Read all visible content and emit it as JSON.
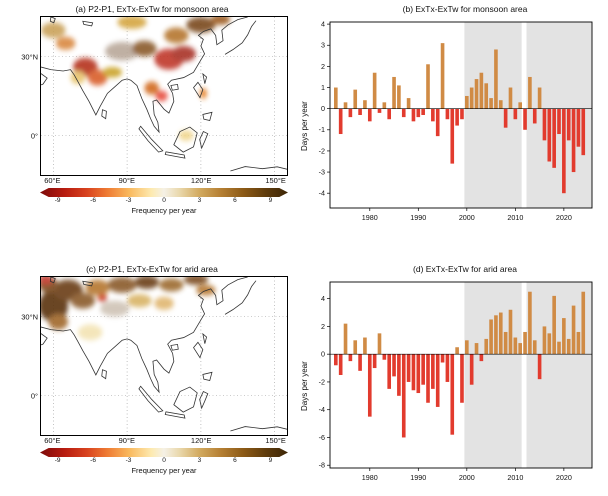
{
  "map_axes": {
    "y_ticks": [
      "30°N",
      "0°"
    ],
    "x_ticks": [
      "60°E",
      "90°E",
      "120°E",
      "150°E"
    ]
  },
  "chart_data": [
    {
      "id": "a",
      "type": "heatmap",
      "title": "(a) P2-P1, ExTx-ExTw for monsoon area",
      "extent": {
        "lon": [
          55,
          155
        ],
        "lat": [
          -15,
          45
        ]
      },
      "colorbar": {
        "label": "Frequency per year",
        "tick_labels": [
          "-9",
          "-6",
          "-3",
          "0",
          "3",
          "6",
          "9"
        ],
        "range": [
          -10.5,
          10.5
        ],
        "palette": "dark-red / red / orange / yellow / white / tan / brown / dark-brown"
      },
      "hotspots": [
        {
          "lon": 73,
          "lat": 26,
          "rx": 5,
          "ry": 3.5,
          "color": "#b5301f"
        },
        {
          "lon": 78,
          "lat": 22,
          "rx": 4,
          "ry": 3,
          "color": "#d95f2b"
        },
        {
          "lon": 70,
          "lat": 22,
          "rx": 3,
          "ry": 2.5,
          "color": "#e8c56f"
        },
        {
          "lon": 84,
          "lat": 24,
          "rx": 4,
          "ry": 2,
          "color": "#c9a227"
        },
        {
          "lon": 88,
          "lat": 32,
          "rx": 7,
          "ry": 3.5,
          "color": "#b9a89a"
        },
        {
          "lon": 97,
          "lat": 33,
          "rx": 5,
          "ry": 3,
          "color": "#8a5a2b"
        },
        {
          "lon": 107,
          "lat": 29,
          "rx": 6,
          "ry": 4,
          "color": "#c0392b"
        },
        {
          "lon": 113,
          "lat": 31,
          "rx": 5,
          "ry": 3,
          "color": "#a93226"
        },
        {
          "lon": 120,
          "lat": 42,
          "rx": 6,
          "ry": 3,
          "color": "#7a4a1f"
        },
        {
          "lon": 110,
          "lat": 38,
          "rx": 5,
          "ry": 3,
          "color": "#b5762f"
        },
        {
          "lon": 60,
          "lat": 40,
          "rx": 5,
          "ry": 3,
          "color": "#caa25a"
        },
        {
          "lon": 65,
          "lat": 35,
          "rx": 4,
          "ry": 2.5,
          "color": "#d98841"
        },
        {
          "lon": 100,
          "lat": 18,
          "rx": 3,
          "ry": 2.5,
          "color": "#d2691e"
        },
        {
          "lon": 104,
          "lat": 15,
          "rx": 2.5,
          "ry": 2,
          "color": "#e74c3c"
        },
        {
          "lon": 121,
          "lat": 16,
          "rx": 1.5,
          "ry": 2,
          "color": "#e67e22"
        },
        {
          "lon": 114,
          "lat": 0,
          "rx": 3,
          "ry": 2,
          "color": "#f0d58c"
        },
        {
          "lon": 92,
          "lat": 43,
          "rx": 6,
          "ry": 2.5,
          "color": "#d4a53f"
        },
        {
          "lon": 128,
          "lat": 44,
          "rx": 4,
          "ry": 2,
          "color": "#9c5a1e"
        }
      ]
    },
    {
      "id": "b",
      "type": "bar",
      "title": "(b) ExTx-ExTw for monsoon area",
      "ylabel": "Days per year",
      "ylim": [
        -4.7,
        4.1
      ],
      "yticks": [
        -4,
        -3,
        -2,
        -1,
        0,
        1,
        2,
        3,
        4
      ],
      "xlim": [
        1971.8,
        2025.8
      ],
      "xticks": [
        1980,
        1990,
        2000,
        2010,
        2020
      ],
      "shaded_spans": [
        [
          1999.5,
          2011.3
        ],
        [
          2012.3,
          2025.8
        ]
      ],
      "shade_color": "#e3e3e3",
      "positive_color": "#d08b45",
      "negative_color": "#e23b2e",
      "years": [
        1973,
        1974,
        1975,
        1976,
        1977,
        1978,
        1979,
        1980,
        1981,
        1982,
        1983,
        1984,
        1985,
        1986,
        1987,
        1988,
        1989,
        1990,
        1991,
        1992,
        1993,
        1994,
        1995,
        1996,
        1997,
        1998,
        1999,
        2000,
        2001,
        2002,
        2003,
        2004,
        2005,
        2006,
        2007,
        2008,
        2009,
        2010,
        2011,
        2012,
        2013,
        2014,
        2015,
        2016,
        2017,
        2018,
        2019,
        2020,
        2021,
        2022,
        2023,
        2024
      ],
      "values": [
        1.0,
        -1.2,
        0.3,
        -0.4,
        0.9,
        -0.3,
        0.4,
        -0.6,
        1.7,
        -0.2,
        0.3,
        -0.5,
        1.5,
        1.1,
        -0.4,
        0.5,
        -0.6,
        -0.4,
        -0.3,
        2.1,
        -0.6,
        -1.3,
        3.1,
        -0.5,
        -2.6,
        -0.8,
        -0.5,
        0.6,
        1.0,
        1.4,
        1.7,
        1.2,
        0.5,
        2.8,
        0.4,
        -0.9,
        1.0,
        -0.5,
        0.3,
        -1.0,
        1.5,
        -0.7,
        1.0,
        -1.5,
        -2.5,
        -2.8,
        -1.2,
        -4.0,
        -1.5,
        -3.0,
        -1.8,
        -2.2
      ]
    },
    {
      "id": "c",
      "type": "heatmap",
      "title": "(c) P2-P1, ExTx-ExTw for arid area",
      "extent": {
        "lon": [
          55,
          155
        ],
        "lat": [
          -15,
          45
        ]
      },
      "colorbar": {
        "label": "Frequency per year",
        "tick_labels": [
          "-9",
          "-6",
          "-3",
          "0",
          "3",
          "6",
          "9"
        ],
        "range": [
          -10.5,
          10.5
        ],
        "palette": "dark-red / red / orange / yellow / white / tan / brown / dark-brown"
      },
      "hotspots": [
        {
          "lon": 60,
          "lat": 34,
          "rx": 6,
          "ry": 6,
          "color": "#5a3310"
        },
        {
          "lon": 66,
          "lat": 40,
          "rx": 6,
          "ry": 4,
          "color": "#6b3e14"
        },
        {
          "lon": 58,
          "lat": 42,
          "rx": 4,
          "ry": 3,
          "color": "#7a4a1f"
        },
        {
          "lon": 72,
          "lat": 36,
          "rx": 5,
          "ry": 3,
          "color": "#8a5a2b"
        },
        {
          "lon": 62,
          "lat": 28,
          "rx": 4,
          "ry": 3,
          "color": "#a0682c"
        },
        {
          "lon": 57,
          "lat": 44,
          "rx": 3,
          "ry": 2,
          "color": "#c0392b"
        },
        {
          "lon": 78,
          "lat": 41,
          "rx": 5,
          "ry": 3,
          "color": "#b5762f"
        },
        {
          "lon": 88,
          "lat": 42,
          "rx": 6,
          "ry": 3,
          "color": "#8a5a2b"
        },
        {
          "lon": 98,
          "lat": 43,
          "rx": 5,
          "ry": 2.5,
          "color": "#6b3e14"
        },
        {
          "lon": 108,
          "lat": 42,
          "rx": 5,
          "ry": 2.5,
          "color": "#9c6b2f"
        },
        {
          "lon": 118,
          "lat": 44,
          "rx": 5,
          "ry": 2,
          "color": "#7a4a1f"
        },
        {
          "lon": 85,
          "lat": 33,
          "rx": 6,
          "ry": 3,
          "color": "#cfc3b5"
        },
        {
          "lon": 95,
          "lat": 36,
          "rx": 5,
          "ry": 2.5,
          "color": "#d8b365"
        },
        {
          "lon": 75,
          "lat": 24,
          "rx": 5,
          "ry": 3,
          "color": "#f3e3b3"
        },
        {
          "lon": 105,
          "lat": 35,
          "rx": 4,
          "ry": 2.5,
          "color": "#e0b66f"
        },
        {
          "lon": 80,
          "lat": 37,
          "rx": 2,
          "ry": 1.5,
          "color": "#cc4125"
        },
        {
          "lon": 122,
          "lat": 40,
          "rx": 4,
          "ry": 2,
          "color": "#b5762f"
        }
      ]
    },
    {
      "id": "d",
      "type": "bar",
      "title": "(d) ExTx-ExTw for arid area",
      "ylabel": "Days per year",
      "ylim": [
        -8.2,
        5.2
      ],
      "yticks": [
        -8,
        -6,
        -4,
        -2,
        0,
        2,
        4
      ],
      "xlim": [
        1971.8,
        2025.8
      ],
      "xticks": [
        1980,
        1990,
        2000,
        2010,
        2020
      ],
      "shaded_spans": [
        [
          1999.5,
          2011.3
        ],
        [
          2012.3,
          2025.8
        ]
      ],
      "shade_color": "#e3e3e3",
      "positive_color": "#d08b45",
      "negative_color": "#e23b2e",
      "years": [
        1973,
        1974,
        1975,
        1976,
        1977,
        1978,
        1979,
        1980,
        1981,
        1982,
        1983,
        1984,
        1985,
        1986,
        1987,
        1988,
        1989,
        1990,
        1991,
        1992,
        1993,
        1994,
        1995,
        1996,
        1997,
        1998,
        1999,
        2000,
        2001,
        2002,
        2003,
        2004,
        2005,
        2006,
        2007,
        2008,
        2009,
        2010,
        2011,
        2012,
        2013,
        2014,
        2015,
        2016,
        2017,
        2018,
        2019,
        2020,
        2021,
        2022,
        2023,
        2024
      ],
      "values": [
        -0.8,
        -1.5,
        2.2,
        -0.5,
        1.0,
        -1.2,
        1.2,
        -4.5,
        -1.0,
        1.5,
        -0.4,
        -2.5,
        -1.6,
        -3.0,
        -6.0,
        -2.0,
        -2.6,
        -2.8,
        -2.2,
        -3.5,
        -2.5,
        -3.8,
        -0.6,
        -2.0,
        -5.8,
        0.5,
        -3.5,
        1.0,
        -2.2,
        0.8,
        -0.5,
        1.1,
        2.5,
        2.8,
        3.0,
        1.6,
        3.2,
        1.2,
        0.8,
        1.6,
        4.5,
        1.0,
        -1.8,
        2.0,
        1.5,
        4.2,
        0.9,
        2.6,
        1.1,
        3.5,
        1.6,
        4.5
      ]
    }
  ]
}
